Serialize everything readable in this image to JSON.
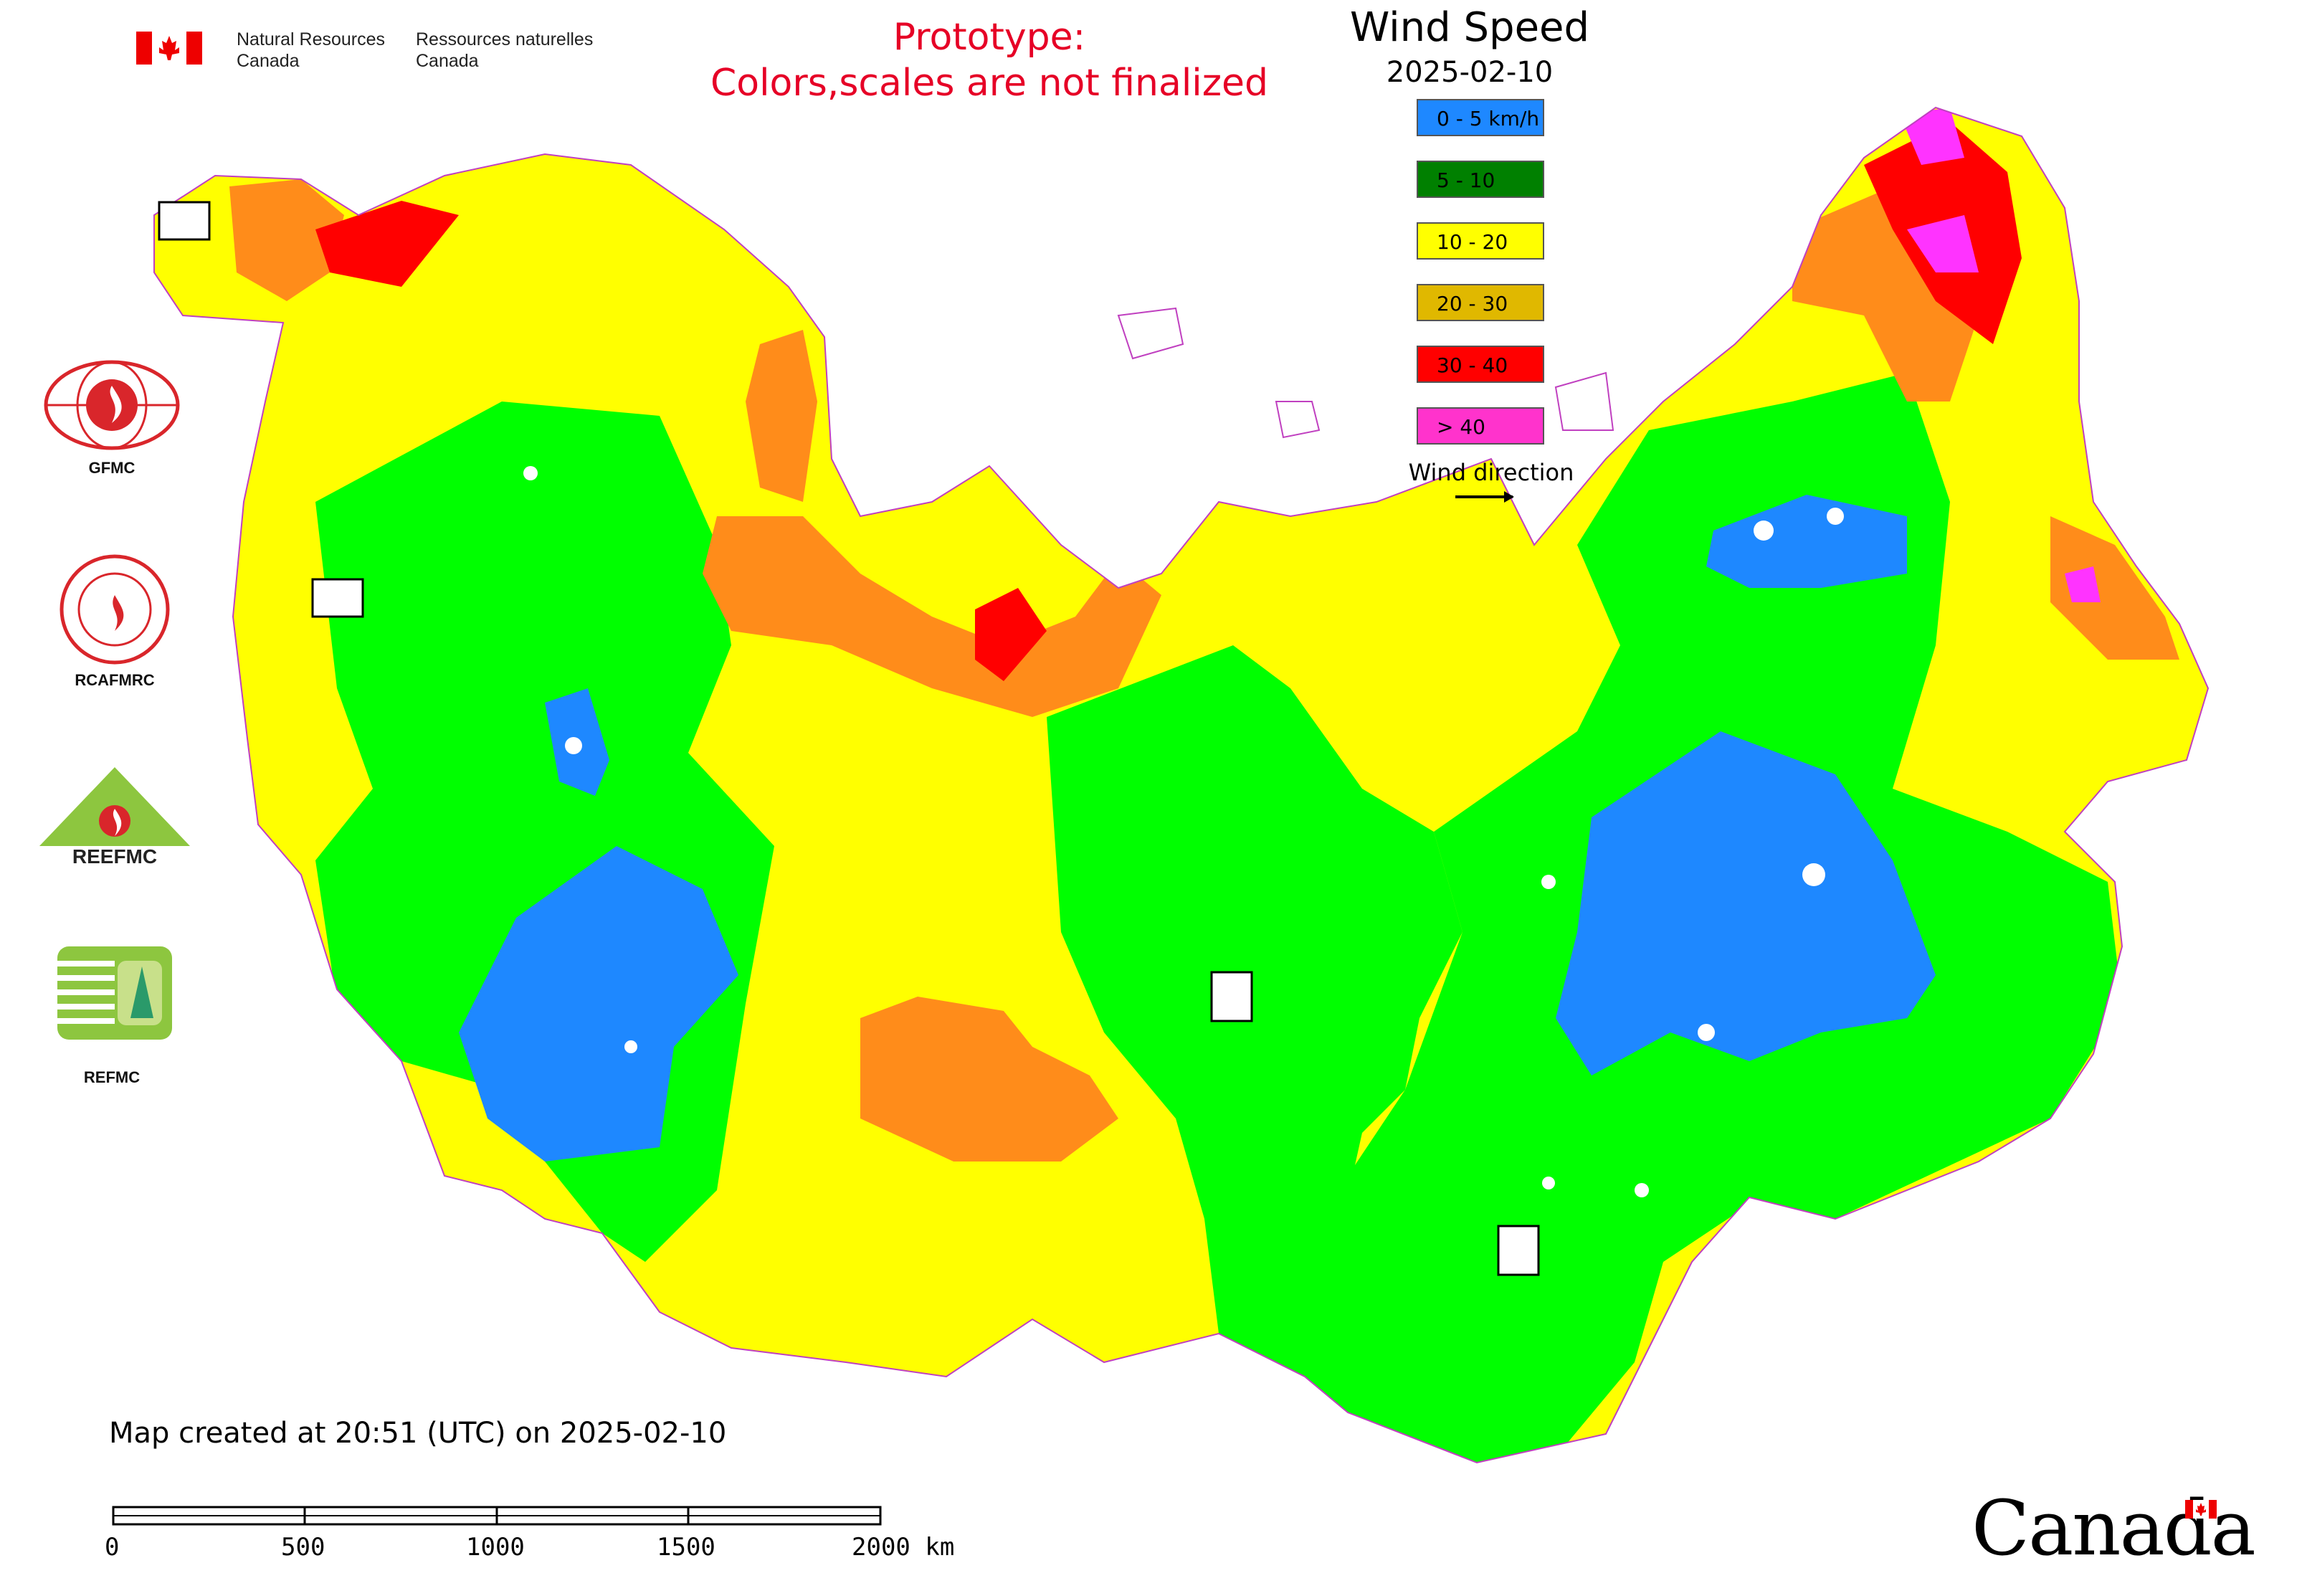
{
  "header": {
    "nrcan_en_1": "Natural Resources",
    "nrcan_en_2": "Canada",
    "nrcan_fr_1": "Ressources naturelles",
    "nrcan_fr_2": "Canada",
    "prototype_line1": "Prototype:",
    "prototype_line2": "Colors,scales are not finalized"
  },
  "map": {
    "title": "Wind Speed",
    "date": "2025-02-10",
    "created_note": "Map created at 20:51 (UTC) on 2025-02-10",
    "wind_direction_label": "Wind direction"
  },
  "legend": [
    {
      "label": "0 - 5 km/h",
      "color": "#1e88ff"
    },
    {
      "label": "5 - 10",
      "color": "#008000"
    },
    {
      "label": "10 - 20",
      "color": "#ffff00"
    },
    {
      "label": "20 - 30",
      "color": "#e0b800"
    },
    {
      "label": "30 - 40",
      "color": "#ff0000"
    },
    {
      "label": "> 40",
      "color": "#ff33cc"
    }
  ],
  "zone_colors": {
    "calm": "#1e88ff",
    "light": "#00ff00",
    "moderate": "#ffff00",
    "fresh": "#ff8c1a",
    "strong": "#ff0000",
    "gale": "#ff33ff"
  },
  "organizations": [
    {
      "label": "GFMC",
      "icon": "gfmc-flame-globe-logo"
    },
    {
      "label": "RCAFMRC",
      "icon": "rcafmrc-round-seal-logo"
    },
    {
      "label": "REEFMC",
      "icon": "reefmc-triangle-logo"
    },
    {
      "label": "REFMC",
      "icon": "refmc-sigma-logo"
    }
  ],
  "scale_bar": {
    "ticks": [
      "0",
      "500",
      "1000",
      "1500",
      "2000 km"
    ]
  },
  "footer": {
    "wordmark": "Canada"
  }
}
